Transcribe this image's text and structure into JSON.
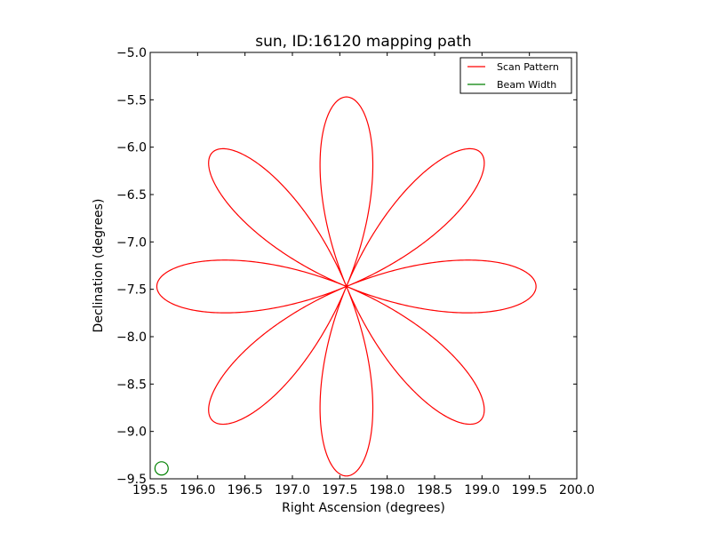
{
  "chart_data": {
    "type": "line",
    "title": "sun, ID:16120 mapping path",
    "xlabel": "Right Ascension (degrees)",
    "ylabel": "Declination (degrees)",
    "xlim": [
      195.5,
      200.0
    ],
    "ylim": [
      -9.5,
      -5.0
    ],
    "xticks": [
      195.5,
      196.0,
      196.5,
      197.0,
      197.5,
      198.0,
      198.5,
      199.0,
      199.5,
      200.0
    ],
    "xtick_labels": [
      "195.5",
      "196.0",
      "196.5",
      "197.0",
      "197.5",
      "198.0",
      "198.5",
      "199.0",
      "199.5",
      "200.0"
    ],
    "yticks": [
      -5.0,
      -5.5,
      -6.0,
      -6.5,
      -7.0,
      -7.5,
      -8.0,
      -8.5,
      -9.0,
      -9.5
    ],
    "ytick_labels": [
      "−5.0",
      "−5.5",
      "−6.0",
      "−6.5",
      "−7.0",
      "−7.5",
      "−8.0",
      "−8.5",
      "−9.0",
      "−9.5"
    ],
    "grid": false,
    "legend_position": "top-right",
    "series": [
      {
        "name": "Scan Pattern",
        "color": "#ff0000",
        "pattern": "rose",
        "center": [
          197.57,
          -7.47
        ],
        "radius": 2.0,
        "petals": 8
      },
      {
        "name": "Beam Width",
        "color": "#008000",
        "pattern": "circle",
        "center": [
          195.62,
          -9.39
        ],
        "radius": 0.07
      }
    ]
  }
}
